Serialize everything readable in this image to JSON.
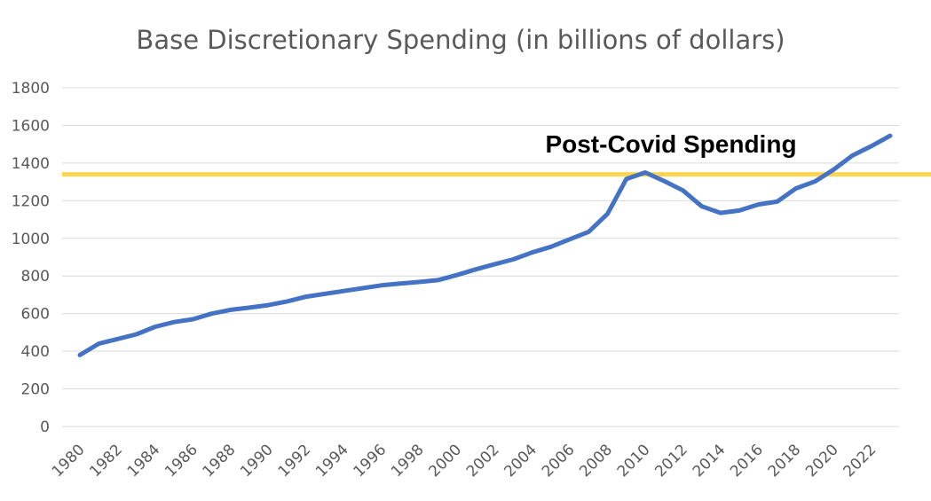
{
  "chart_data": {
    "type": "line",
    "title": "Base Discretionary Spending (in billions of dollars)",
    "xlabel": "",
    "ylabel": "",
    "ylim": [
      0,
      1800
    ],
    "yticks": [
      0,
      200,
      400,
      600,
      800,
      1000,
      1200,
      1400,
      1600,
      1800
    ],
    "xticks": [
      1980,
      1982,
      1984,
      1986,
      1988,
      1990,
      1992,
      1994,
      1996,
      1998,
      2000,
      2002,
      2004,
      2006,
      2008,
      2010,
      2012,
      2014,
      2016,
      2018,
      2020,
      2022
    ],
    "grid": true,
    "legend": "none",
    "series": [
      {
        "color": "#4472C4",
        "x": [
          1980,
          1981,
          1982,
          1983,
          1984,
          1985,
          1986,
          1987,
          1988,
          1989,
          1990,
          1991,
          1992,
          1993,
          1994,
          1995,
          1996,
          1997,
          1998,
          1999,
          2000,
          2001,
          2002,
          2003,
          2004,
          2005,
          2006,
          2007,
          2008,
          2009,
          2010,
          2011,
          2012,
          2013,
          2014,
          2015,
          2016,
          2017,
          2018,
          2019,
          2020,
          2021,
          2022,
          2023
        ],
        "values": [
          380,
          440,
          465,
          490,
          530,
          555,
          570,
          600,
          620,
          632,
          645,
          665,
          690,
          705,
          720,
          735,
          750,
          760,
          768,
          778,
          805,
          835,
          862,
          888,
          925,
          955,
          995,
          1035,
          1130,
          1315,
          1350,
          1305,
          1255,
          1170,
          1135,
          1148,
          1180,
          1195,
          1265,
          1302,
          1365,
          1440,
          1490,
          1545
        ]
      }
    ],
    "reference_line": {
      "y": 1340,
      "color": "#FFD54F"
    },
    "annotation": {
      "text": "Post-Covid Spending"
    }
  }
}
